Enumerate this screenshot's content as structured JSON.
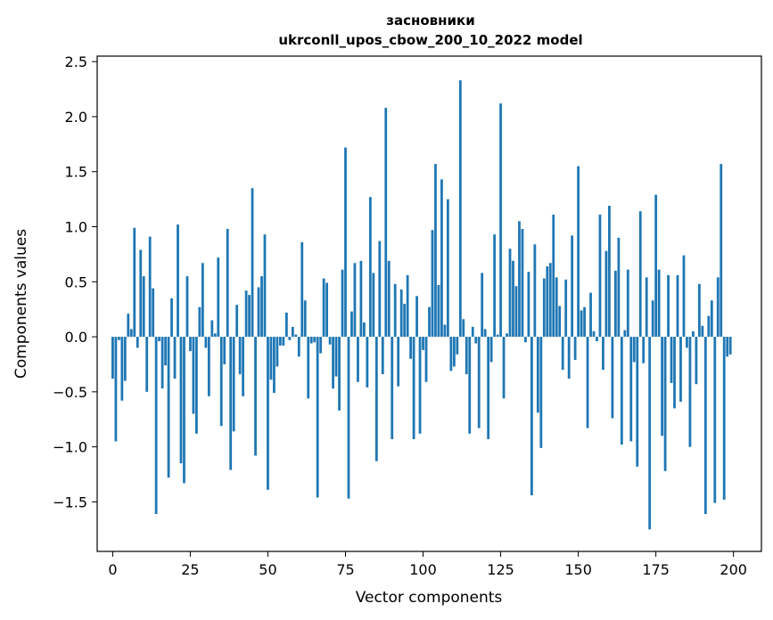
{
  "chart_data": {
    "type": "bar",
    "title": "засновники",
    "subtitle": "ukrconll_upos_cbow_200_10_2022 model",
    "xlabel": "Vector components",
    "ylabel": "Components values",
    "xlim": [
      -5,
      209
    ],
    "ylim": [
      -1.95,
      2.55
    ],
    "xticks": [
      0,
      25,
      50,
      75,
      100,
      125,
      150,
      175,
      200
    ],
    "xtick_labels": [
      "0",
      "25",
      "50",
      "75",
      "100",
      "125",
      "150",
      "175",
      "200"
    ],
    "yticks": [
      -1.5,
      -1.0,
      -0.5,
      0.0,
      0.5,
      1.0,
      1.5,
      2.0,
      2.5
    ],
    "ytick_labels": [
      "−1.5",
      "−1.0",
      "−0.5",
      "0.0",
      "0.5",
      "1.0",
      "1.5",
      "2.0",
      "2.5"
    ],
    "grid": false,
    "bar_color": "#1f77b4",
    "x": [
      0,
      1,
      2,
      3,
      4,
      5,
      6,
      7,
      8,
      9,
      10,
      11,
      12,
      13,
      14,
      15,
      16,
      17,
      18,
      19,
      20,
      21,
      22,
      23,
      24,
      25,
      26,
      27,
      28,
      29,
      30,
      31,
      32,
      33,
      34,
      35,
      36,
      37,
      38,
      39,
      40,
      41,
      42,
      43,
      44,
      45,
      46,
      47,
      48,
      49,
      50,
      51,
      52,
      53,
      54,
      55,
      56,
      57,
      58,
      59,
      60,
      61,
      62,
      63,
      64,
      65,
      66,
      67,
      68,
      69,
      70,
      71,
      72,
      73,
      74,
      75,
      76,
      77,
      78,
      79,
      80,
      81,
      82,
      83,
      84,
      85,
      86,
      87,
      88,
      89,
      90,
      91,
      92,
      93,
      94,
      95,
      96,
      97,
      98,
      99,
      100,
      101,
      102,
      103,
      104,
      105,
      106,
      107,
      108,
      109,
      110,
      111,
      112,
      113,
      114,
      115,
      116,
      117,
      118,
      119,
      120,
      121,
      122,
      123,
      124,
      125,
      126,
      127,
      128,
      129,
      130,
      131,
      132,
      133,
      134,
      135,
      136,
      137,
      138,
      139,
      140,
      141,
      142,
      143,
      144,
      145,
      146,
      147,
      148,
      149,
      150,
      151,
      152,
      153,
      154,
      155,
      156,
      157,
      158,
      159,
      160,
      161,
      162,
      163,
      164,
      165,
      166,
      167,
      168,
      169,
      170,
      171,
      172,
      173,
      174,
      175,
      176,
      177,
      178,
      179,
      180,
      181,
      182,
      183,
      184,
      185,
      186,
      187,
      188,
      189,
      190,
      191,
      192,
      193,
      194,
      195,
      196,
      197,
      198,
      199
    ],
    "values": [
      -0.38,
      -0.95,
      -0.03,
      -0.58,
      -0.4,
      0.21,
      0.07,
      0.99,
      -0.1,
      0.79,
      0.55,
      -0.5,
      0.91,
      0.44,
      -1.61,
      -0.04,
      -0.47,
      -0.26,
      -1.28,
      0.35,
      -0.38,
      1.02,
      -1.15,
      -1.33,
      0.55,
      -0.13,
      -0.7,
      -0.88,
      0.27,
      0.67,
      -0.1,
      -0.54,
      0.15,
      0.03,
      0.72,
      -0.81,
      -0.25,
      0.98,
      -1.21,
      -0.86,
      0.29,
      -0.34,
      -0.54,
      0.42,
      0.38,
      1.35,
      -1.08,
      0.45,
      0.55,
      0.93,
      -1.39,
      -0.39,
      -0.51,
      -0.27,
      -0.08,
      -0.08,
      0.22,
      -0.03,
      0.09,
      0.02,
      -0.18,
      0.86,
      0.33,
      -0.56,
      -0.06,
      -0.05,
      -1.46,
      -0.15,
      0.53,
      0.49,
      -0.07,
      -0.47,
      -0.36,
      -0.67,
      0.61,
      1.72,
      -1.47,
      0.23,
      0.67,
      -0.41,
      0.69,
      0.13,
      -0.46,
      1.27,
      0.58,
      -1.13,
      0.87,
      -0.34,
      2.08,
      0.69,
      -0.93,
      0.48,
      -0.45,
      0.43,
      0.3,
      0.56,
      -0.2,
      -0.93,
      0.37,
      -0.88,
      -0.12,
      -0.41,
      0.27,
      0.97,
      1.57,
      0.47,
      1.43,
      0.11,
      1.25,
      -0.31,
      -0.27,
      -0.16,
      2.33,
      0.16,
      -0.34,
      -0.88,
      0.09,
      -0.06,
      -0.83,
      0.58,
      0.07,
      -0.93,
      -0.23,
      0.93,
      0.02,
      2.12,
      -0.56,
      0.03,
      0.8,
      0.69,
      0.46,
      1.05,
      0.98,
      -0.05,
      0.59,
      -1.44,
      0.84,
      -0.69,
      -1.01,
      0.53,
      0.64,
      0.67,
      1.11,
      0.54,
      0.28,
      -0.3,
      0.52,
      -0.38,
      0.92,
      -0.21,
      1.55,
      0.24,
      0.27,
      -0.83,
      0.4,
      0.05,
      -0.04,
      1.11,
      -0.3,
      0.78,
      1.19,
      -0.74,
      0.6,
      0.9,
      -0.98,
      0.06,
      0.61,
      -0.95,
      -0.23,
      -1.18,
      1.14,
      -0.24,
      0.54,
      -1.75,
      0.33,
      1.29,
      0.61,
      -0.9,
      -1.22,
      0.56,
      -0.42,
      -0.65,
      0.56,
      -0.59,
      0.74,
      -0.1,
      -1.0,
      0.05,
      -0.43,
      0.48,
      0.1,
      -1.61,
      0.19,
      0.33,
      -1.51,
      0.54,
      1.57,
      -1.48,
      -0.18,
      -0.16
    ]
  }
}
